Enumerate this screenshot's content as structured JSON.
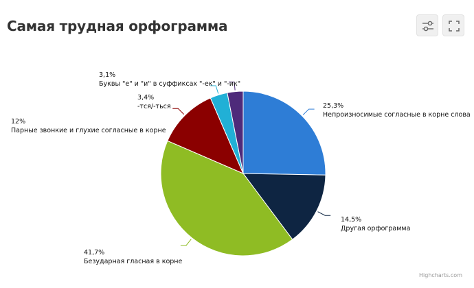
{
  "title": "Самая трудная орфограмма",
  "toolbar": {
    "settings_icon": "sliders-icon",
    "fullscreen_icon": "expand-icon"
  },
  "credits": "Highcharts.com",
  "chart_data": {
    "type": "pie",
    "title": "Самая трудная орфограмма",
    "slices": [
      {
        "name": "Непроизносимые согласные в корне слова",
        "value": 25.3,
        "label": "25,3%",
        "color": "#2e7dd6"
      },
      {
        "name": "Другая орфограмма",
        "value": 14.5,
        "label": "14,5%",
        "color": "#0e2542"
      },
      {
        "name": "Безударная гласная в корне",
        "value": 41.7,
        "label": "41,7%",
        "color": "#8fbc24"
      },
      {
        "name": "Парные звонкие и глухие согласные в корне",
        "value": 12,
        "label": "12%",
        "color": "#8b0000"
      },
      {
        "name": "-тся/-ться",
        "value": 3.4,
        "label": "3,4%",
        "color": "#21b0d6"
      },
      {
        "name": "Буквы \"е\" и \"и\" в суффиксах \"-ек\" и \"-ик\"",
        "value": 3.1,
        "label": "3,1%",
        "color": "#4e2a7a"
      }
    ]
  }
}
